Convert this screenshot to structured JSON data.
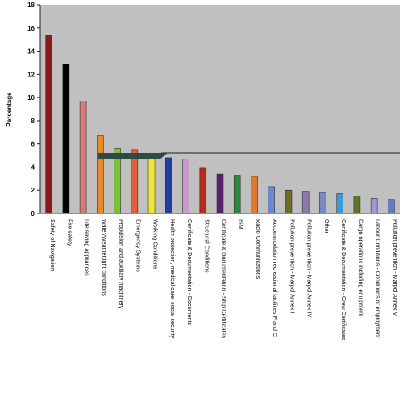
{
  "chart_data": {
    "type": "bar",
    "title": "",
    "xlabel": "",
    "ylabel": "Percentage",
    "ylim": [
      0,
      18
    ],
    "yticks": [
      0,
      2,
      4,
      6,
      8,
      10,
      12,
      14,
      16,
      18
    ],
    "grid": false,
    "legend": "none",
    "plot_background": "#c0c0c0",
    "categories": [
      "Safety of Navigation",
      "Fire safety",
      "Life saving appliances",
      "Water/Weathertight conditions",
      "Propulsion and auxiliary machinery",
      "Emergency Systems",
      "Working Conditions",
      "Health protection, medical care, social security",
      "Certificate & Documentation - Documents",
      "Structural Conditions",
      "Certificate & Documentation - Ship Certificates",
      "ISM",
      "Radio Communications",
      "Accommodation recreational facilities F and C",
      "Pollution prevention - Marpol Annex I",
      "Pollution prevention - Marpol Annex IV",
      "Other",
      "Certificate & Documentation - Crew Certificates",
      "Cargo operations including equipment",
      "Labour Conditions - Conditions of employment",
      "Pollution prevention - Marpol Annex V"
    ],
    "values": [
      15.4,
      12.9,
      9.7,
      6.7,
      5.6,
      5.5,
      5.1,
      4.8,
      4.7,
      3.9,
      3.4,
      3.3,
      3.2,
      2.3,
      2.0,
      1.9,
      1.8,
      1.7,
      1.5,
      1.3,
      1.2
    ],
    "colors": [
      "#8b1a1a",
      "#000000",
      "#d97a7a",
      "#e8892b",
      "#7bbf3b",
      "#e0603a",
      "#f2e43a",
      "#1f3f9f",
      "#c89ac8",
      "#b52a1a",
      "#5a1f6e",
      "#2e8a3a",
      "#e07a2a",
      "#6a8ad0",
      "#6b6b2a",
      "#8a7ab0",
      "#7a88c8",
      "#3a9ad8",
      "#5a7a2a",
      "#9a9ad8",
      "#6a7ac0"
    ]
  }
}
